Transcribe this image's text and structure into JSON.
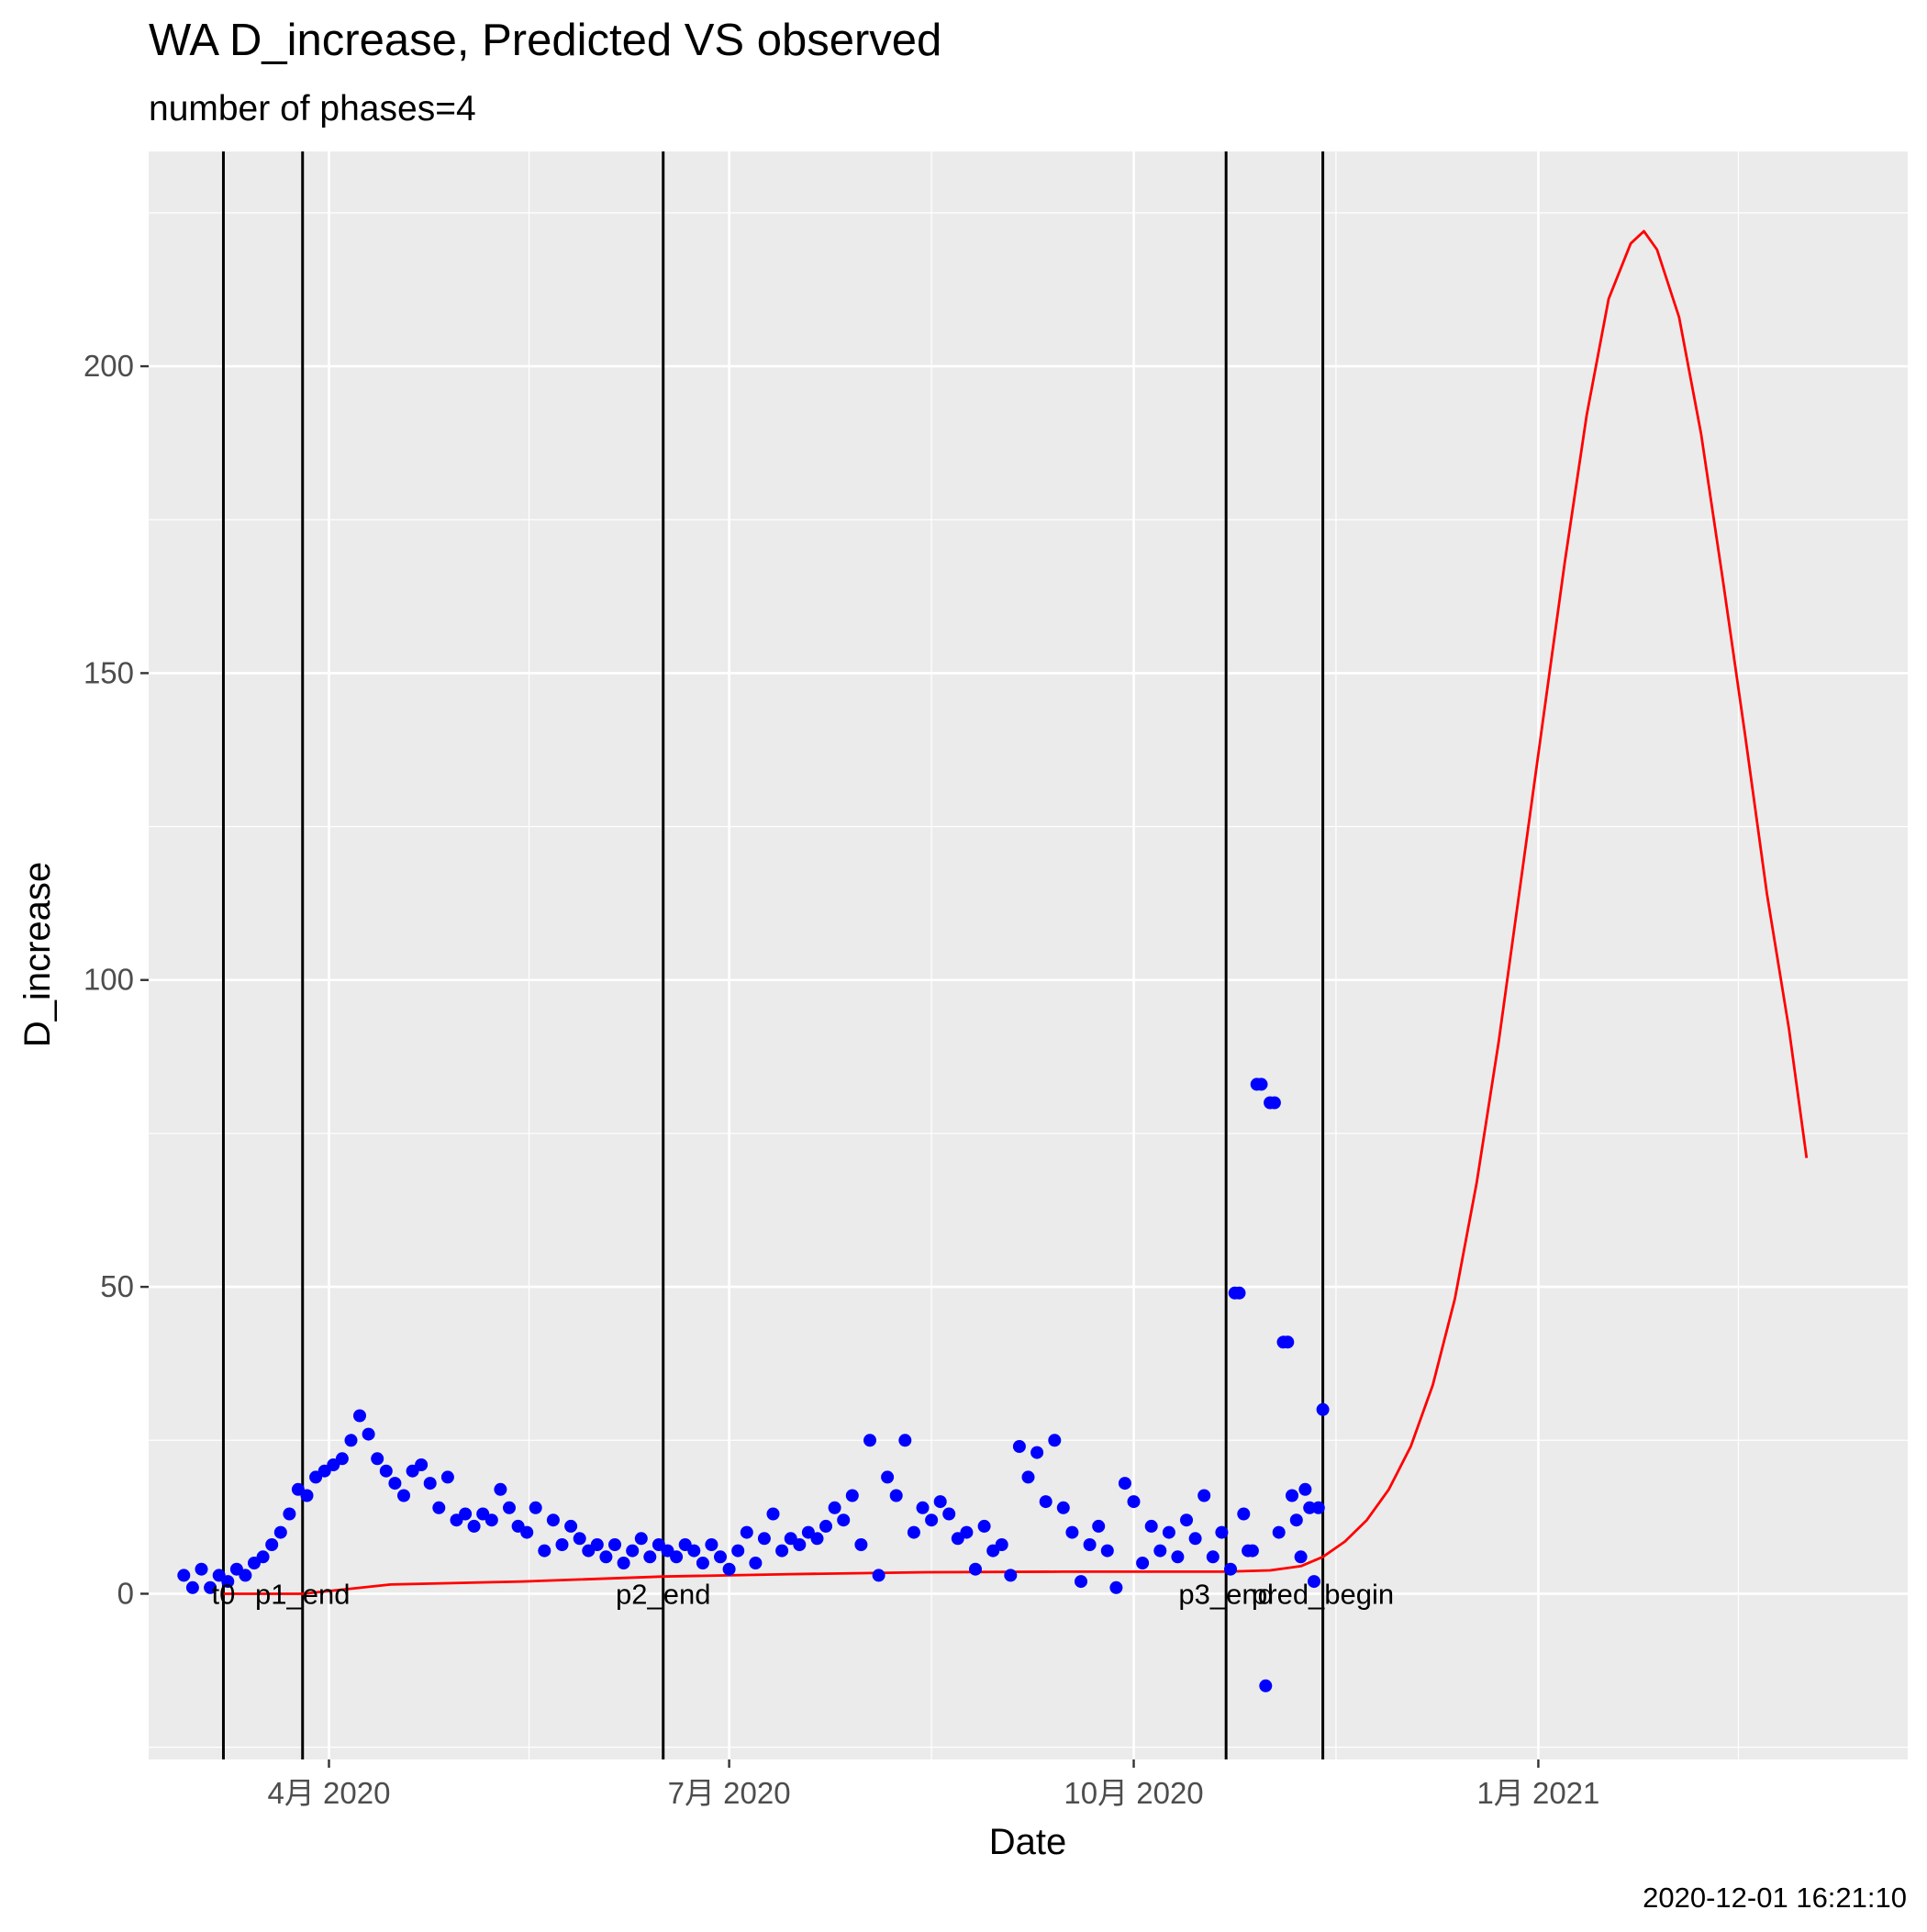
{
  "chart_data": {
    "type": "line",
    "title": "WA D_increase, Predicted VS observed",
    "subtitle": "number of phases=4",
    "xlabel": "Date",
    "ylabel": "D_increase",
    "caption": "2020-12-01 16:21:10",
    "x_scale": "date",
    "xlim": [
      "2020-02-20",
      "2021-03-26"
    ],
    "ylim": [
      -27,
      235
    ],
    "grid": true,
    "legend": "none",
    "x_ticks": [
      {
        "value": "2020-04-01",
        "label": "4月 2020"
      },
      {
        "value": "2020-07-01",
        "label": "7月 2020"
      },
      {
        "value": "2020-10-01",
        "label": "10月 2020"
      },
      {
        "value": "2021-01-01",
        "label": "1月 2021"
      }
    ],
    "y_ticks": [
      {
        "value": 0,
        "label": "0"
      },
      {
        "value": 50,
        "label": "50"
      },
      {
        "value": 100,
        "label": "100"
      },
      {
        "value": 150,
        "label": "150"
      },
      {
        "value": 200,
        "label": "200"
      }
    ],
    "vlines": [
      {
        "x": "2020-03-08",
        "label": "t0"
      },
      {
        "x": "2020-03-26",
        "label": "p1_end"
      },
      {
        "x": "2020-06-16",
        "label": "p2_end"
      },
      {
        "x": "2020-10-22",
        "label": "p3_end"
      },
      {
        "x": "2020-11-13",
        "label": "pred_begin"
      }
    ],
    "series": [
      {
        "kind": "scatter",
        "color": "#0000ff",
        "points": [
          [
            "2020-02-28",
            3
          ],
          [
            "2020-03-01",
            1
          ],
          [
            "2020-03-03",
            4
          ],
          [
            "2020-03-05",
            1
          ],
          [
            "2020-03-07",
            3
          ],
          [
            "2020-03-09",
            2
          ],
          [
            "2020-03-11",
            4
          ],
          [
            "2020-03-13",
            3
          ],
          [
            "2020-03-15",
            5
          ],
          [
            "2020-03-17",
            6
          ],
          [
            "2020-03-19",
            8
          ],
          [
            "2020-03-21",
            10
          ],
          [
            "2020-03-23",
            13
          ],
          [
            "2020-03-25",
            17
          ],
          [
            "2020-03-27",
            16
          ],
          [
            "2020-03-29",
            19
          ],
          [
            "2020-03-31",
            20
          ],
          [
            "2020-04-02",
            21
          ],
          [
            "2020-04-04",
            22
          ],
          [
            "2020-04-06",
            25
          ],
          [
            "2020-04-08",
            29
          ],
          [
            "2020-04-10",
            26
          ],
          [
            "2020-04-12",
            22
          ],
          [
            "2020-04-14",
            20
          ],
          [
            "2020-04-16",
            18
          ],
          [
            "2020-04-18",
            16
          ],
          [
            "2020-04-20",
            20
          ],
          [
            "2020-04-22",
            21
          ],
          [
            "2020-04-24",
            18
          ],
          [
            "2020-04-26",
            14
          ],
          [
            "2020-04-28",
            19
          ],
          [
            "2020-04-30",
            12
          ],
          [
            "2020-05-02",
            13
          ],
          [
            "2020-05-04",
            11
          ],
          [
            "2020-05-06",
            13
          ],
          [
            "2020-05-08",
            12
          ],
          [
            "2020-05-10",
            17
          ],
          [
            "2020-05-12",
            14
          ],
          [
            "2020-05-14",
            11
          ],
          [
            "2020-05-16",
            10
          ],
          [
            "2020-05-18",
            14
          ],
          [
            "2020-05-20",
            7
          ],
          [
            "2020-05-22",
            12
          ],
          [
            "2020-05-24",
            8
          ],
          [
            "2020-05-26",
            11
          ],
          [
            "2020-05-28",
            9
          ],
          [
            "2020-05-30",
            7
          ],
          [
            "2020-06-01",
            8
          ],
          [
            "2020-06-03",
            6
          ],
          [
            "2020-06-05",
            8
          ],
          [
            "2020-06-07",
            5
          ],
          [
            "2020-06-09",
            7
          ],
          [
            "2020-06-11",
            9
          ],
          [
            "2020-06-13",
            6
          ],
          [
            "2020-06-15",
            8
          ],
          [
            "2020-06-17",
            7
          ],
          [
            "2020-06-19",
            6
          ],
          [
            "2020-06-21",
            8
          ],
          [
            "2020-06-23",
            7
          ],
          [
            "2020-06-25",
            5
          ],
          [
            "2020-06-27",
            8
          ],
          [
            "2020-06-29",
            6
          ],
          [
            "2020-07-01",
            4
          ],
          [
            "2020-07-03",
            7
          ],
          [
            "2020-07-05",
            10
          ],
          [
            "2020-07-07",
            5
          ],
          [
            "2020-07-09",
            9
          ],
          [
            "2020-07-11",
            13
          ],
          [
            "2020-07-13",
            7
          ],
          [
            "2020-07-15",
            9
          ],
          [
            "2020-07-17",
            8
          ],
          [
            "2020-07-19",
            10
          ],
          [
            "2020-07-21",
            9
          ],
          [
            "2020-07-23",
            11
          ],
          [
            "2020-07-25",
            14
          ],
          [
            "2020-07-27",
            12
          ],
          [
            "2020-07-29",
            16
          ],
          [
            "2020-07-31",
            8
          ],
          [
            "2020-08-02",
            25
          ],
          [
            "2020-08-04",
            3
          ],
          [
            "2020-08-06",
            19
          ],
          [
            "2020-08-08",
            16
          ],
          [
            "2020-08-10",
            25
          ],
          [
            "2020-08-12",
            10
          ],
          [
            "2020-08-14",
            14
          ],
          [
            "2020-08-16",
            12
          ],
          [
            "2020-08-18",
            15
          ],
          [
            "2020-08-20",
            13
          ],
          [
            "2020-08-22",
            9
          ],
          [
            "2020-08-24",
            10
          ],
          [
            "2020-08-26",
            4
          ],
          [
            "2020-08-28",
            11
          ],
          [
            "2020-08-30",
            7
          ],
          [
            "2020-09-01",
            8
          ],
          [
            "2020-09-03",
            3
          ],
          [
            "2020-09-05",
            24
          ],
          [
            "2020-09-07",
            19
          ],
          [
            "2020-09-09",
            23
          ],
          [
            "2020-09-11",
            15
          ],
          [
            "2020-09-13",
            25
          ],
          [
            "2020-09-15",
            14
          ],
          [
            "2020-09-17",
            10
          ],
          [
            "2020-09-19",
            2
          ],
          [
            "2020-09-21",
            8
          ],
          [
            "2020-09-23",
            11
          ],
          [
            "2020-09-25",
            7
          ],
          [
            "2020-09-27",
            1
          ],
          [
            "2020-09-29",
            18
          ],
          [
            "2020-10-01",
            15
          ],
          [
            "2020-10-03",
            5
          ],
          [
            "2020-10-05",
            11
          ],
          [
            "2020-10-07",
            7
          ],
          [
            "2020-10-09",
            10
          ],
          [
            "2020-10-11",
            6
          ],
          [
            "2020-10-13",
            12
          ],
          [
            "2020-10-15",
            9
          ],
          [
            "2020-10-17",
            16
          ],
          [
            "2020-10-19",
            6
          ],
          [
            "2020-10-21",
            10
          ],
          [
            "2020-10-23",
            4
          ],
          [
            "2020-10-24",
            49
          ],
          [
            "2020-10-25",
            49
          ],
          [
            "2020-10-26",
            13
          ],
          [
            "2020-10-27",
            7
          ],
          [
            "2020-10-28",
            7
          ],
          [
            "2020-10-29",
            83
          ],
          [
            "2020-10-30",
            83
          ],
          [
            "2020-10-31",
            -15
          ],
          [
            "2020-11-01",
            80
          ],
          [
            "2020-11-02",
            80
          ],
          [
            "2020-11-03",
            10
          ],
          [
            "2020-11-04",
            41
          ],
          [
            "2020-11-05",
            41
          ],
          [
            "2020-11-06",
            16
          ],
          [
            "2020-11-07",
            12
          ],
          [
            "2020-11-08",
            6
          ],
          [
            "2020-11-09",
            17
          ],
          [
            "2020-11-10",
            14
          ],
          [
            "2020-11-11",
            2
          ],
          [
            "2020-11-12",
            14
          ],
          [
            "2020-11-13",
            30
          ]
        ]
      },
      {
        "kind": "line",
        "color": "#ff0000",
        "points": [
          [
            "2020-03-08",
            0
          ],
          [
            "2020-03-26",
            0
          ],
          [
            "2020-04-15",
            1.5
          ],
          [
            "2020-05-15",
            2
          ],
          [
            "2020-06-16",
            2.8
          ],
          [
            "2020-07-15",
            3.2
          ],
          [
            "2020-08-15",
            3.5
          ],
          [
            "2020-09-15",
            3.6
          ],
          [
            "2020-10-22",
            3.6
          ],
          [
            "2020-11-01",
            3.8
          ],
          [
            "2020-11-08",
            4.5
          ],
          [
            "2020-11-13",
            6
          ],
          [
            "2020-11-18",
            8.5
          ],
          [
            "2020-11-23",
            12
          ],
          [
            "2020-11-28",
            17
          ],
          [
            "2020-12-03",
            24
          ],
          [
            "2020-12-08",
            34
          ],
          [
            "2020-12-13",
            48
          ],
          [
            "2020-12-18",
            67
          ],
          [
            "2020-12-23",
            90
          ],
          [
            "2020-12-28",
            116
          ],
          [
            "2021-01-02",
            142
          ],
          [
            "2021-01-07",
            168
          ],
          [
            "2021-01-12",
            192
          ],
          [
            "2021-01-17",
            211
          ],
          [
            "2021-01-22",
            220
          ],
          [
            "2021-01-25",
            222
          ],
          [
            "2021-01-28",
            219
          ],
          [
            "2021-02-02",
            208
          ],
          [
            "2021-02-07",
            189
          ],
          [
            "2021-02-12",
            165
          ],
          [
            "2021-02-17",
            140
          ],
          [
            "2021-02-22",
            114
          ],
          [
            "2021-02-27",
            92
          ],
          [
            "2021-03-03",
            71
          ]
        ]
      }
    ]
  }
}
